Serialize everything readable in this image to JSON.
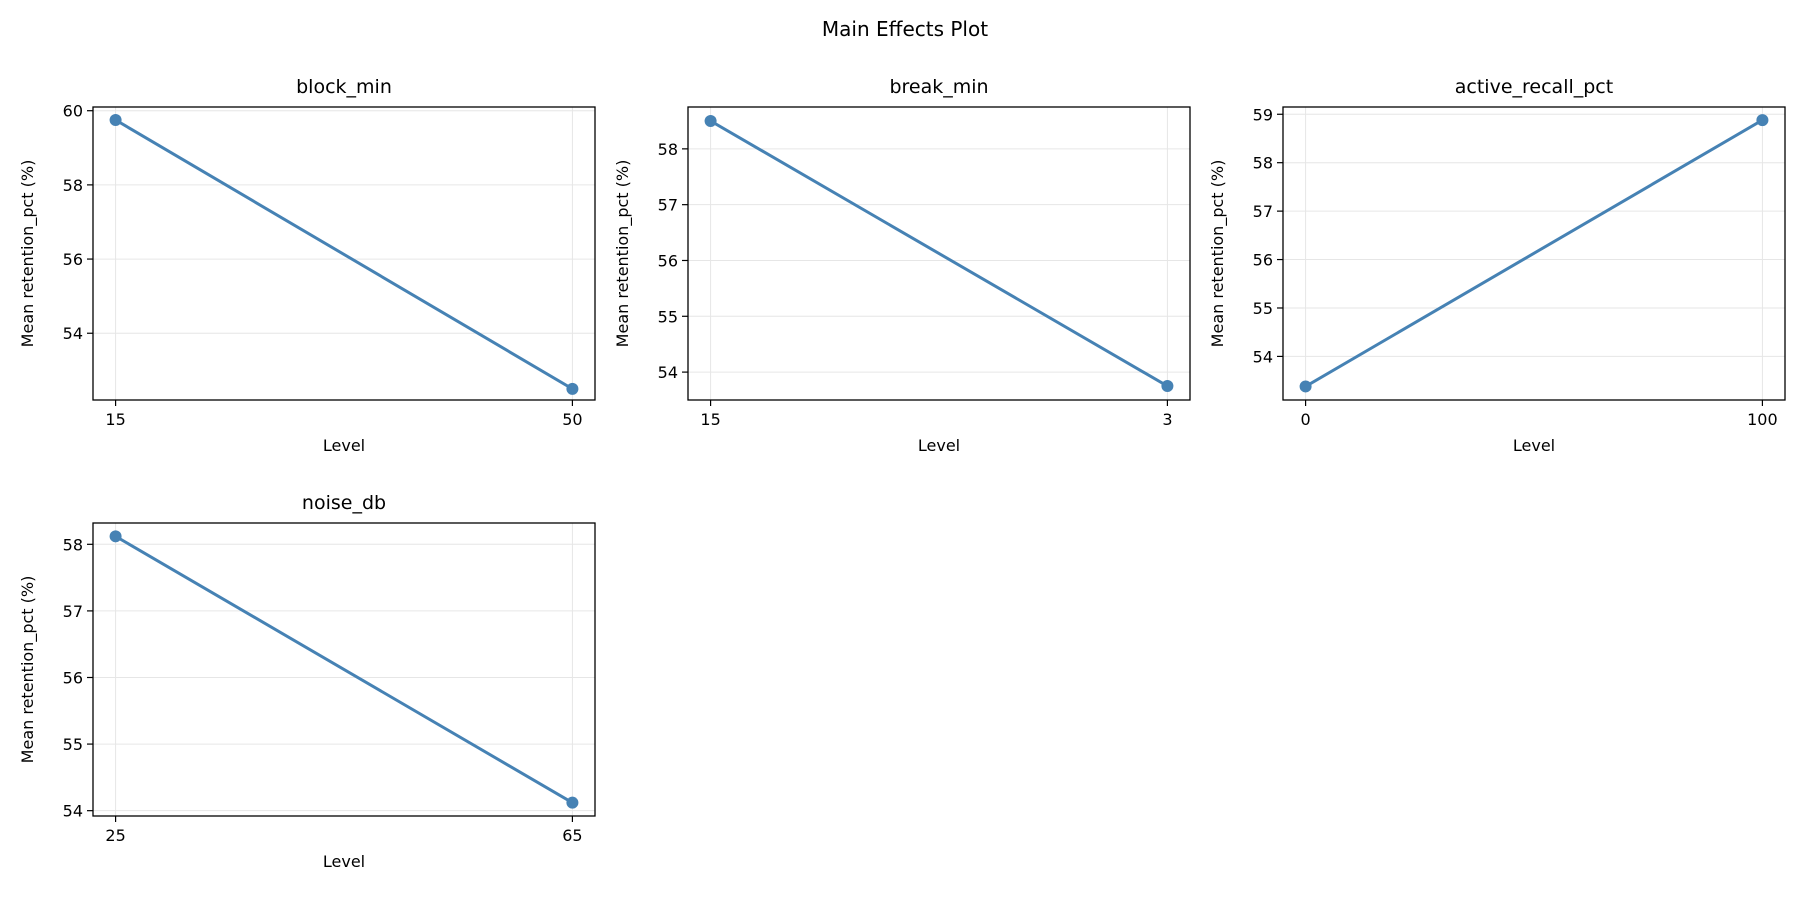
{
  "figure": {
    "title": "Main Effects Plot"
  },
  "colors": {
    "line": "#4682b4",
    "grid": "#e6e6e6",
    "axes": "#000000",
    "background": "#ffffff"
  },
  "chart_data": [
    {
      "type": "line",
      "title": "block_min",
      "xlabel": "Level",
      "ylabel": "Mean retention_pct (%)",
      "categories": [
        "15",
        "50"
      ],
      "values": [
        59.75,
        52.5
      ],
      "ylim": [
        52.2,
        60.1
      ],
      "yticks": [
        54,
        56,
        58,
        60
      ],
      "grid": true,
      "marker": "circle"
    },
    {
      "type": "line",
      "title": "break_min",
      "xlabel": "Level",
      "ylabel": "Mean retention_pct (%)",
      "categories": [
        "15",
        "3"
      ],
      "values": [
        58.5,
        53.75
      ],
      "ylim": [
        53.5,
        58.75
      ],
      "yticks": [
        54,
        55,
        56,
        57,
        58
      ],
      "grid": true,
      "marker": "circle"
    },
    {
      "type": "line",
      "title": "active_recall_pct",
      "xlabel": "Level",
      "ylabel": "Mean retention_pct (%)",
      "categories": [
        "0",
        "100"
      ],
      "values": [
        53.38,
        58.88
      ],
      "ylim": [
        53.1,
        59.15
      ],
      "yticks": [
        54,
        55,
        56,
        57,
        58,
        59
      ],
      "grid": true,
      "marker": "circle"
    },
    {
      "type": "line",
      "title": "noise_db",
      "xlabel": "Level",
      "ylabel": "Mean retention_pct (%)",
      "categories": [
        "25",
        "65"
      ],
      "values": [
        58.12,
        54.12
      ],
      "ylim": [
        53.92,
        58.32
      ],
      "yticks": [
        54,
        55,
        56,
        57,
        58
      ],
      "grid": true,
      "marker": "circle"
    }
  ]
}
